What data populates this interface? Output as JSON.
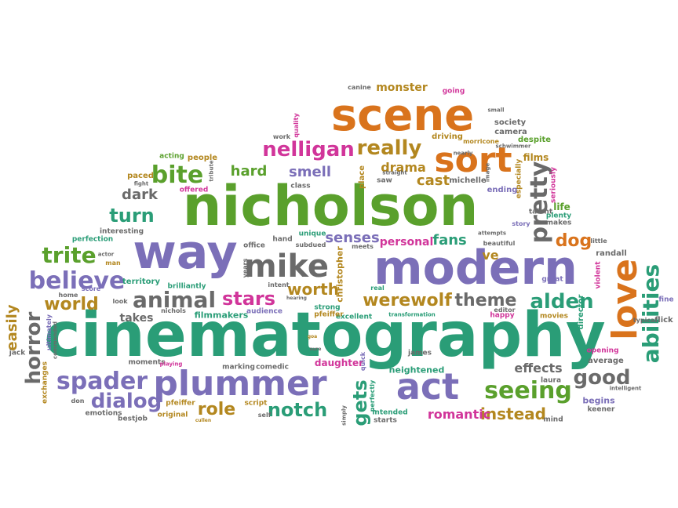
{
  "palette": {
    "green": "#5aa02c",
    "teal": "#2a9d77",
    "purple": "#7b6fb8",
    "orange": "#d9731c",
    "magenta": "#d1359a",
    "gold": "#b3871f",
    "gray": "#6a6a6a"
  },
  "words": [
    {
      "text": "cinematography",
      "color": "teal"
    },
    {
      "text": "nicholson",
      "color": "green"
    },
    {
      "text": "modern",
      "color": "purple"
    },
    {
      "text": "scene",
      "color": "orange"
    },
    {
      "text": "way",
      "color": "purple"
    },
    {
      "text": "plummer",
      "color": "purple"
    },
    {
      "text": "mike",
      "color": "gray"
    },
    {
      "text": "act",
      "color": "purple"
    },
    {
      "text": "sort",
      "color": "orange"
    },
    {
      "text": "love",
      "color": "orange"
    },
    {
      "text": "pretty",
      "color": "gray"
    },
    {
      "text": "abilities",
      "color": "teal"
    },
    {
      "text": "seeing",
      "color": "green"
    },
    {
      "text": "spader",
      "color": "purple"
    },
    {
      "text": "believe",
      "color": "purple"
    },
    {
      "text": "alden",
      "color": "teal"
    },
    {
      "text": "werewolf",
      "color": "gold"
    },
    {
      "text": "theme",
      "color": "gray"
    },
    {
      "text": "animal",
      "color": "gray"
    },
    {
      "text": "stars",
      "color": "magenta"
    },
    {
      "text": "nelligan",
      "color": "magenta"
    },
    {
      "text": "really",
      "color": "gold"
    },
    {
      "text": "bite",
      "color": "green"
    },
    {
      "text": "trite",
      "color": "green"
    },
    {
      "text": "dialog",
      "color": "purple"
    },
    {
      "text": "role",
      "color": "gold"
    },
    {
      "text": "notch",
      "color": "teal"
    },
    {
      "text": "horror",
      "color": "gray"
    },
    {
      "text": "world",
      "color": "gold"
    },
    {
      "text": "turn",
      "color": "teal"
    },
    {
      "text": "good",
      "color": "gray"
    },
    {
      "text": "worth",
      "color": "gold"
    },
    {
      "text": "instead",
      "color": "gold"
    },
    {
      "text": "gets",
      "color": "teal"
    },
    {
      "text": "dog",
      "color": "orange"
    },
    {
      "text": "senses",
      "color": "purple"
    },
    {
      "text": "fans",
      "color": "teal"
    },
    {
      "text": "easily",
      "color": "gold"
    },
    {
      "text": "hard",
      "color": "green"
    },
    {
      "text": "smell",
      "color": "purple"
    },
    {
      "text": "cast",
      "color": "gold"
    },
    {
      "text": "drama",
      "color": "gold"
    },
    {
      "text": "effects",
      "color": "gray"
    },
    {
      "text": "monster",
      "color": "gold"
    },
    {
      "text": "romantic",
      "color": "magenta"
    },
    {
      "text": "dark",
      "color": "gray"
    },
    {
      "text": "personal",
      "color": "magenta"
    },
    {
      "text": "ve",
      "color": "gold"
    },
    {
      "text": "takes",
      "color": "gray"
    },
    {
      "text": "christopher",
      "color": "gold"
    },
    {
      "text": "films",
      "color": "gold"
    },
    {
      "text": "life",
      "color": "green"
    },
    {
      "text": "filmmakers",
      "color": "teal"
    },
    {
      "text": "territory",
      "color": "teal"
    },
    {
      "text": "heightened",
      "color": "teal"
    },
    {
      "text": "daughter",
      "color": "magenta"
    },
    {
      "text": "average",
      "color": "gray"
    },
    {
      "text": "begins",
      "color": "purple"
    },
    {
      "text": "ending",
      "color": "purple"
    },
    {
      "text": "driving",
      "color": "gold"
    },
    {
      "text": "society",
      "color": "gray"
    },
    {
      "text": "camera",
      "color": "gray"
    },
    {
      "text": "despite",
      "color": "green"
    },
    {
      "text": "michelle",
      "color": "gray"
    },
    {
      "text": "place",
      "color": "gold"
    },
    {
      "text": "class",
      "color": "gray"
    },
    {
      "text": "talent",
      "color": "gray"
    },
    {
      "text": "plenty",
      "color": "teal"
    },
    {
      "text": "makes",
      "color": "gray"
    },
    {
      "text": "story",
      "color": "purple"
    },
    {
      "text": "randall",
      "color": "gray"
    },
    {
      "text": "little",
      "color": "gray"
    },
    {
      "text": "fine",
      "color": "purple"
    },
    {
      "text": "flick",
      "color": "gray"
    },
    {
      "text": "typical",
      "color": "gray"
    },
    {
      "text": "director",
      "color": "teal"
    },
    {
      "text": "violent",
      "color": "magenta"
    },
    {
      "text": "great",
      "color": "purple"
    },
    {
      "text": "movies",
      "color": "gold"
    },
    {
      "text": "happy",
      "color": "magenta"
    },
    {
      "text": "editor",
      "color": "gray"
    },
    {
      "text": "opening",
      "color": "magenta"
    },
    {
      "text": "intelligent",
      "color": "gray"
    },
    {
      "text": "keener",
      "color": "gray"
    },
    {
      "text": "mind",
      "color": "gray"
    },
    {
      "text": "laura",
      "color": "gray"
    },
    {
      "text": "starts",
      "color": "gray"
    },
    {
      "text": "intended",
      "color": "teal"
    },
    {
      "text": "james",
      "color": "gray"
    },
    {
      "text": "excellent",
      "color": "teal"
    },
    {
      "text": "strong",
      "color": "teal"
    },
    {
      "text": "pfeiffer",
      "color": "gold"
    },
    {
      "text": "perfectly",
      "color": "teal"
    },
    {
      "text": "quick",
      "color": "purple"
    },
    {
      "text": "transformation",
      "color": "teal"
    },
    {
      "text": "meets",
      "color": "gray"
    },
    {
      "text": "real",
      "color": "teal"
    },
    {
      "text": "intent",
      "color": "gray"
    },
    {
      "text": "audience",
      "color": "purple"
    },
    {
      "text": "comedic",
      "color": "gray"
    },
    {
      "text": "marking",
      "color": "gray"
    },
    {
      "text": "script",
      "color": "gold"
    },
    {
      "text": "self",
      "color": "gray"
    },
    {
      "text": "moments",
      "color": "gray"
    },
    {
      "text": "playing",
      "color": "magenta"
    },
    {
      "text": "nichols",
      "color": "gray"
    },
    {
      "text": "look",
      "color": "gray"
    },
    {
      "text": "brilliantly",
      "color": "teal"
    },
    {
      "text": "interesting",
      "color": "gray"
    },
    {
      "text": "perfection",
      "color": "teal"
    },
    {
      "text": "actor",
      "color": "gray"
    },
    {
      "text": "man",
      "color": "gold"
    },
    {
      "text": "score",
      "color": "purple"
    },
    {
      "text": "home",
      "color": "gray"
    },
    {
      "text": "ultimately",
      "color": "purple"
    },
    {
      "text": "commended",
      "color": "gray"
    },
    {
      "text": "exchanges",
      "color": "gold"
    },
    {
      "text": "jack",
      "color": "gray"
    },
    {
      "text": "don",
      "color": "gray"
    },
    {
      "text": "emotions",
      "color": "gray"
    },
    {
      "text": "bestjob",
      "color": "gray"
    },
    {
      "text": "original",
      "color": "gold"
    },
    {
      "text": "pfeiffer",
      "color": "gold"
    },
    {
      "text": "acting",
      "color": "green"
    },
    {
      "text": "people",
      "color": "gold"
    },
    {
      "text": "paced",
      "color": "gold"
    },
    {
      "text": "fight",
      "color": "gray"
    },
    {
      "text": "offered",
      "color": "magenta"
    },
    {
      "text": "tribute",
      "color": "gray"
    },
    {
      "text": "office",
      "color": "gray"
    },
    {
      "text": "hand",
      "color": "gray"
    },
    {
      "text": "unique",
      "color": "teal"
    },
    {
      "text": "years",
      "color": "gray"
    },
    {
      "text": "subdued",
      "color": "gray"
    },
    {
      "text": "attempts",
      "color": "gray"
    },
    {
      "text": "beautiful",
      "color": "gray"
    },
    {
      "text": "quality",
      "color": "magenta"
    },
    {
      "text": "work",
      "color": "gray"
    },
    {
      "text": "canine",
      "color": "gray"
    },
    {
      "text": "going",
      "color": "magenta"
    },
    {
      "text": "small",
      "color": "gray"
    },
    {
      "text": "morricone",
      "color": "gold"
    },
    {
      "text": "nearly",
      "color": "gray"
    },
    {
      "text": "schwimmer",
      "color": "gray"
    },
    {
      "text": "especially",
      "color": "gold"
    },
    {
      "text": "seriously",
      "color": "magenta"
    },
    {
      "text": "saw",
      "color": "gray"
    },
    {
      "text": "straight",
      "color": "gray"
    },
    {
      "text": "image",
      "color": "gray"
    },
    {
      "text": "simply",
      "color": "gray"
    },
    {
      "text": "hearing",
      "color": "gray"
    },
    {
      "text": "cullen",
      "color": "gold"
    },
    {
      "text": "sure",
      "color": "gray"
    },
    {
      "text": "goa",
      "color": "gold"
    }
  ]
}
